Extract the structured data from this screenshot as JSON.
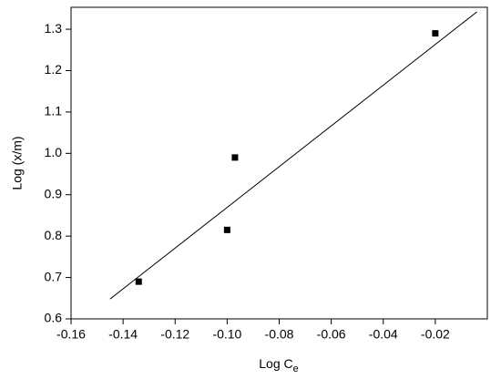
{
  "chart_data": {
    "type": "scatter",
    "x_label": {
      "main": "Log C",
      "sub": "e"
    },
    "y_label": "Log (x/m)",
    "series": [
      {
        "type": "scatter",
        "marker": "square",
        "color": "#000000",
        "x": [
          -0.134,
          -0.1,
          -0.097,
          -0.02
        ],
        "values": [
          0.69,
          0.815,
          0.99,
          1.29
        ]
      },
      {
        "type": "line",
        "color": "#000000",
        "x": [
          -0.145,
          -0.004
        ],
        "values": [
          0.648,
          1.342
        ]
      }
    ],
    "xlim": [
      -0.16,
      0.0
    ],
    "ylim": [
      0.6,
      1.353
    ],
    "xticks": [
      -0.16,
      -0.14,
      -0.12,
      {
        "value": -0.1,
        "label": "-0.10"
      },
      -0.08,
      -0.06,
      -0.04,
      -0.02
    ],
    "yticks": [
      0.6,
      0.7,
      0.8,
      0.9,
      {
        "value": 1.0,
        "label": "1.0"
      },
      1.1,
      1.2,
      1.3
    ],
    "grid": false
  }
}
